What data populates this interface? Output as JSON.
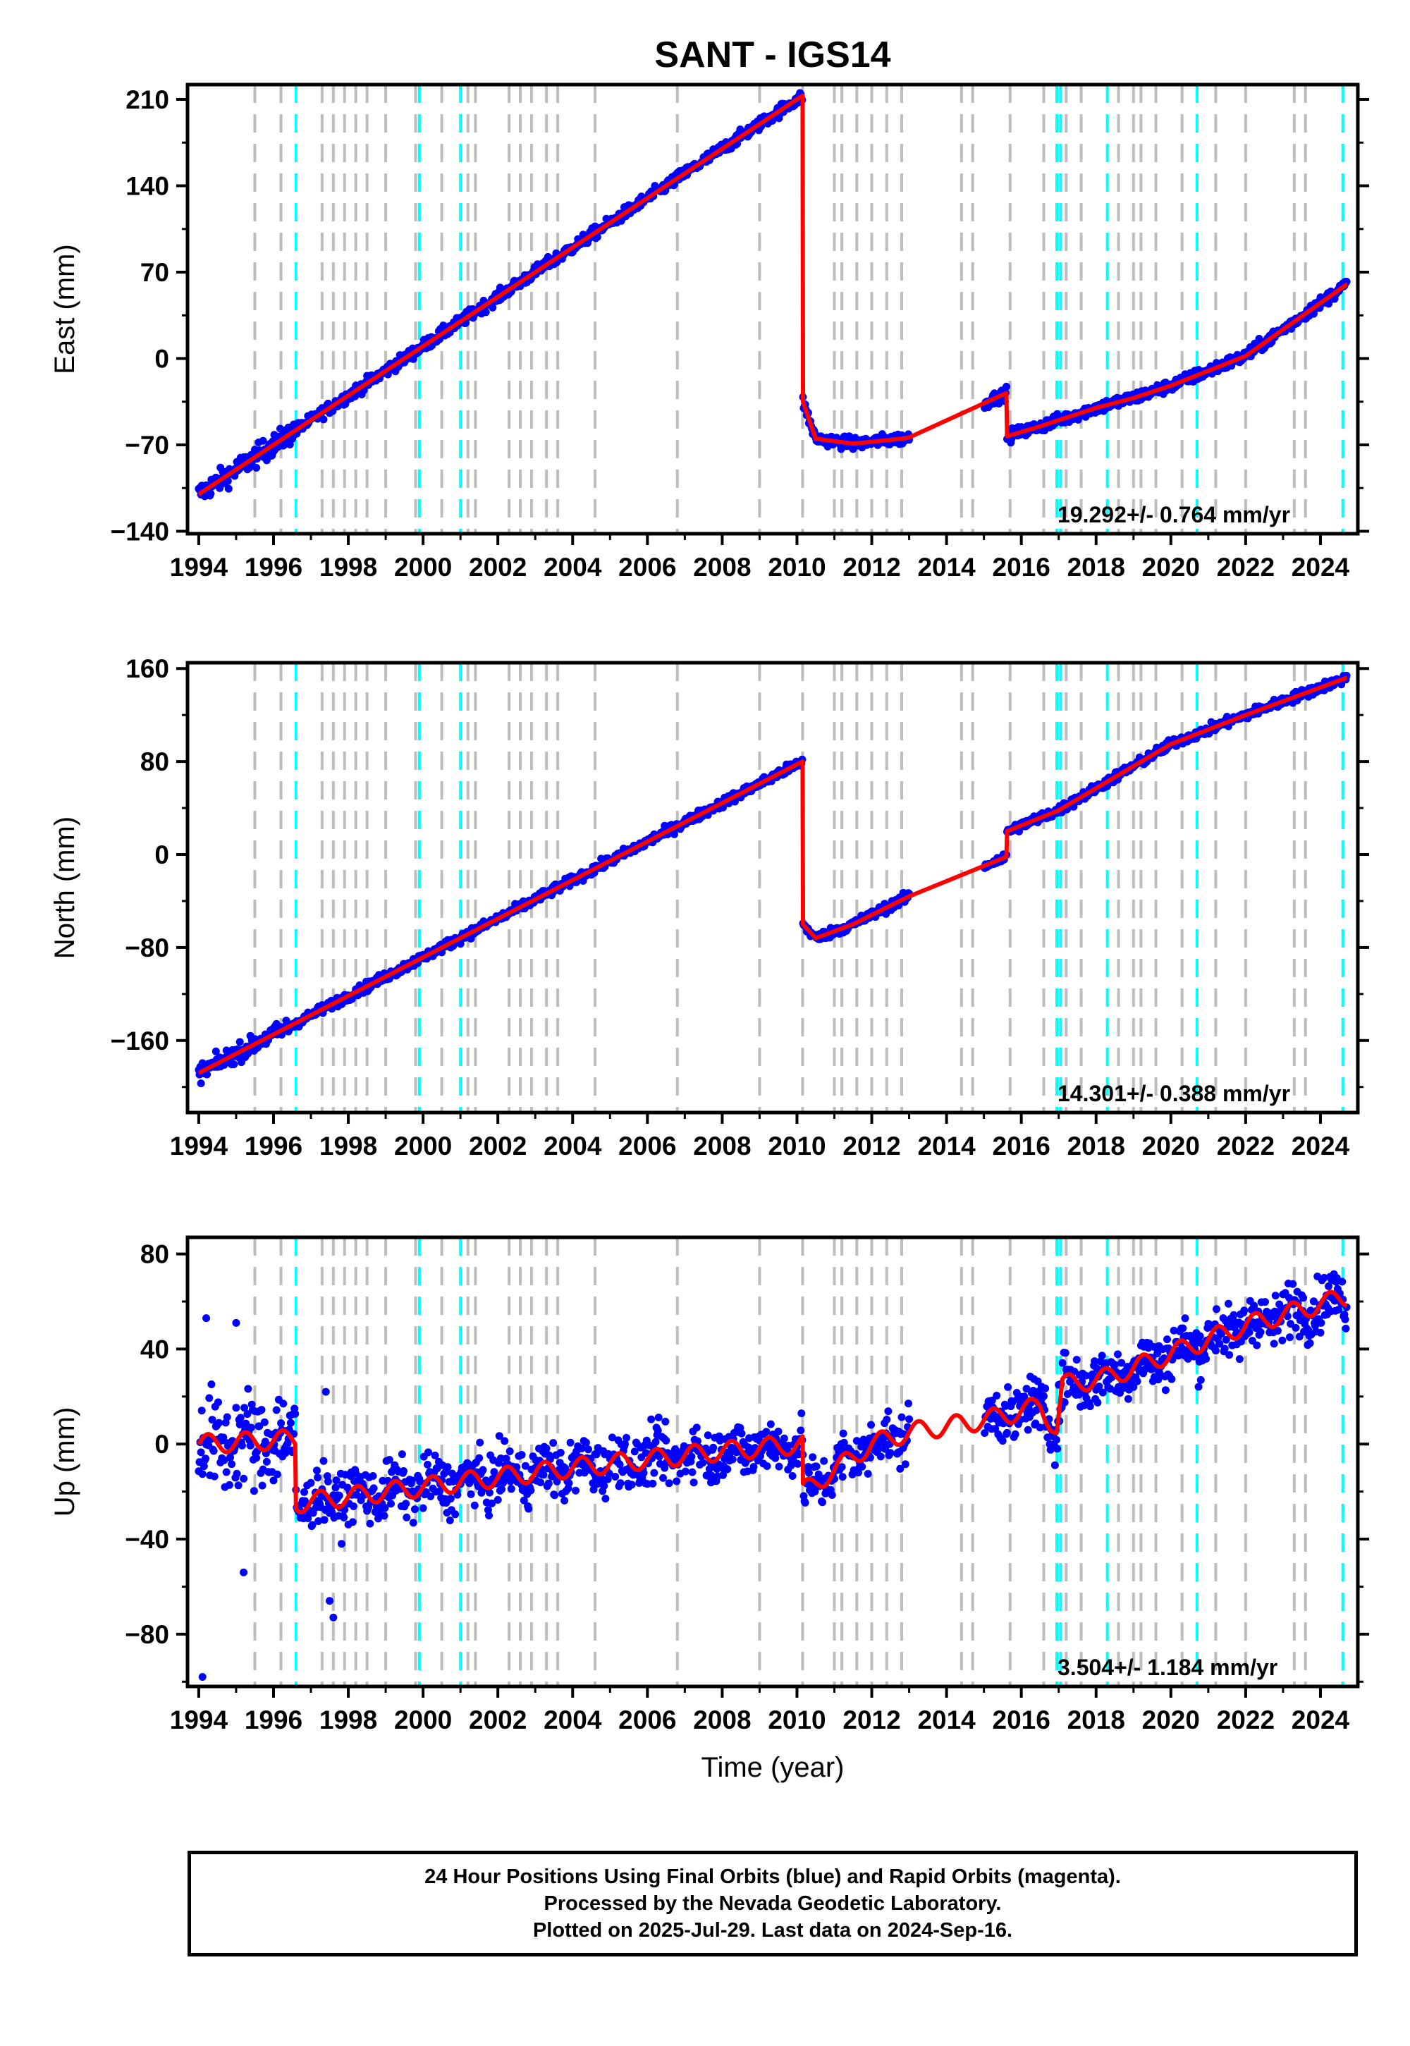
{
  "chart_data": {
    "type": "scatter",
    "title": "SANT - IGS14",
    "xlabel": "Time (year)",
    "xlim": [
      1993.7,
      2025.0
    ],
    "xticks": [
      1994,
      1996,
      1998,
      2000,
      2002,
      2004,
      2006,
      2008,
      2010,
      2012,
      2014,
      2016,
      2018,
      2020,
      2022,
      2024
    ],
    "xtick_labels": [
      "1994",
      "1996",
      "1998",
      "2000",
      "2002",
      "2004",
      "2006",
      "2008",
      "2010",
      "2012",
      "2014",
      "2016",
      "2018",
      "2020",
      "2022",
      "2024"
    ],
    "equipment_change_lines_gray": [
      1995.5,
      1996.2,
      1997.3,
      1997.6,
      1997.9,
      1998.2,
      1998.5,
      1999.0,
      1999.8,
      2000.5,
      2001.2,
      2001.4,
      2002.3,
      2002.6,
      2002.9,
      2003.3,
      2003.6,
      2004.6,
      2006.8,
      2009.0,
      2010.15,
      2011.0,
      2011.2,
      2011.6,
      2012.0,
      2012.4,
      2012.8,
      2014.4,
      2014.7,
      2015.7,
      2016.6,
      2017.2,
      2017.6,
      2018.6,
      2019.0,
      2019.2,
      2019.6,
      2020.3,
      2021.2,
      2022.0,
      2023.3,
      2023.6
    ],
    "earthquake_lines_cyan": [
      1996.6,
      1999.9,
      2001.0,
      2016.95,
      2017.05,
      2018.3,
      2020.7,
      2024.6
    ],
    "panels": [
      {
        "id": "east",
        "ylabel": "East (mm)",
        "ylim": [
          -142,
          222
        ],
        "yticks": [
          210,
          140,
          70,
          0,
          -70,
          -140
        ],
        "ytick_labels": [
          "210",
          "140",
          "70",
          "0",
          "−70",
          "−140"
        ],
        "rate_label": "19.292+/- 0.764 mm/yr",
        "noise_mm": 3.5,
        "model": [
          [
            1994.0,
            -110
          ],
          [
            2010.15,
            213
          ],
          [
            2010.16,
            -35
          ],
          [
            2010.5,
            -65
          ],
          [
            2011.5,
            -69
          ],
          [
            2012.8,
            -65
          ],
          [
            2013.0,
            -64
          ],
          [
            2015.6,
            -28
          ],
          [
            2015.62,
            -63
          ],
          [
            2016.5,
            -55
          ],
          [
            2018.0,
            -40
          ],
          [
            2019.0,
            -32
          ],
          [
            2020.0,
            -22
          ],
          [
            2022.0,
            2
          ],
          [
            2024.7,
            60
          ]
        ],
        "gaps": [
          [
            2013.0,
            2015.0
          ]
        ]
      },
      {
        "id": "north",
        "ylabel": "North (mm)",
        "ylim": [
          -222,
          165
        ],
        "yticks": [
          160,
          80,
          0,
          -80,
          -160
        ],
        "ytick_labels": [
          "160",
          "80",
          "0",
          "−80",
          "−160"
        ],
        "rate_label": "14.301+/- 0.388 mm/yr",
        "noise_mm": 3.0,
        "model": [
          [
            1994.0,
            -188
          ],
          [
            2010.15,
            80
          ],
          [
            2010.16,
            -60
          ],
          [
            2010.5,
            -72
          ],
          [
            2011.5,
            -60
          ],
          [
            2013.0,
            -36
          ],
          [
            2015.6,
            -2
          ],
          [
            2015.62,
            20
          ],
          [
            2017.0,
            38
          ],
          [
            2020.0,
            95
          ],
          [
            2022.0,
            120
          ],
          [
            2024.7,
            152
          ]
        ],
        "gaps": [
          [
            2013.0,
            2015.0
          ]
        ]
      },
      {
        "id": "up",
        "ylabel": "Up (mm)",
        "ylim": [
          -102,
          87
        ],
        "yticks": [
          80,
          40,
          0,
          -40,
          -80
        ],
        "ytick_labels": [
          "80",
          "40",
          "0",
          "−40",
          "−80"
        ],
        "rate_label": "3.504+/- 1.184 mm/yr",
        "noise_mm": 8.0,
        "model": [
          [
            1994.0,
            0
          ],
          [
            1996.58,
            2
          ],
          [
            1996.6,
            -25
          ],
          [
            2000.0,
            -18
          ],
          [
            2004.0,
            -10
          ],
          [
            2008.0,
            -3
          ],
          [
            2010.15,
            0
          ],
          [
            2010.16,
            -20
          ],
          [
            2012.0,
            0
          ],
          [
            2013.0,
            5
          ],
          [
            2015.0,
            10
          ],
          [
            2016.5,
            16
          ],
          [
            2016.95,
            6
          ],
          [
            2017.1,
            25
          ],
          [
            2018.3,
            28
          ],
          [
            2020.0,
            38
          ],
          [
            2022.0,
            50
          ],
          [
            2024.7,
            62
          ]
        ],
        "gaps": [
          [
            2013.0,
            2015.0
          ]
        ],
        "outliers": [
          [
            1994.1,
            -98
          ],
          [
            1994.2,
            53
          ],
          [
            1995.0,
            51
          ],
          [
            1995.2,
            -54
          ],
          [
            1997.6,
            -73
          ],
          [
            1997.5,
            -66
          ],
          [
            1997.4,
            22
          ]
        ]
      }
    ]
  },
  "footer": {
    "line1": "24 Hour Positions Using Final Orbits (blue) and Rapid Orbits (magenta).",
    "line2": "Processed by the Nevada Geodetic Laboratory.",
    "line3": "Plotted on 2025-Jul-29. Last data on 2024-Sep-16."
  },
  "colors": {
    "data_points": "#0000ff",
    "model_line": "#ff0000",
    "equipment_lines": "#bdbdbd",
    "earthquake_lines": "#00ffff",
    "axes": "#000000"
  }
}
